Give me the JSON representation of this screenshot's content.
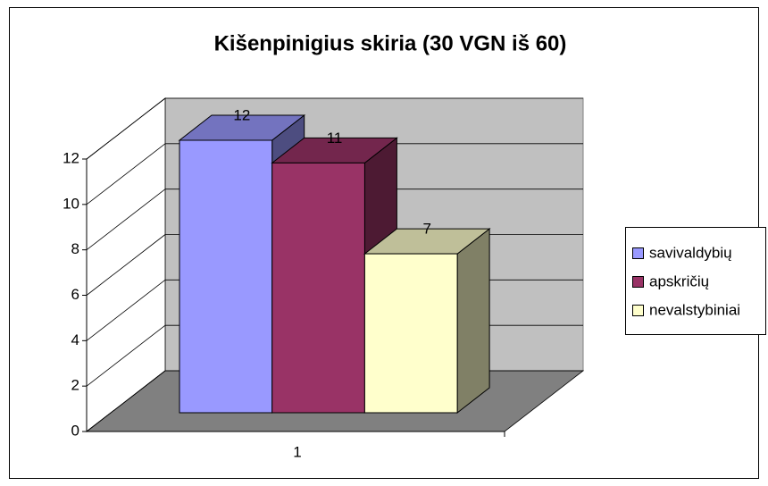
{
  "chart_data": {
    "type": "bar3d",
    "title": "Kišenpinigius skiria (30 VGN iš 60)",
    "categories": [
      "1"
    ],
    "series": [
      {
        "name": "savivaldybių",
        "color": "#9999ff",
        "values": [
          12
        ]
      },
      {
        "name": "apskričių",
        "color": "#993366",
        "values": [
          11
        ]
      },
      {
        "name": "nevalstybiniai",
        "color": "#ffffcc",
        "values": [
          7
        ]
      }
    ],
    "ylim": [
      0,
      12
    ],
    "yticks": [
      0,
      2,
      4,
      6,
      8,
      10,
      12
    ],
    "grid": true,
    "legend": "right",
    "data_labels": true
  }
}
